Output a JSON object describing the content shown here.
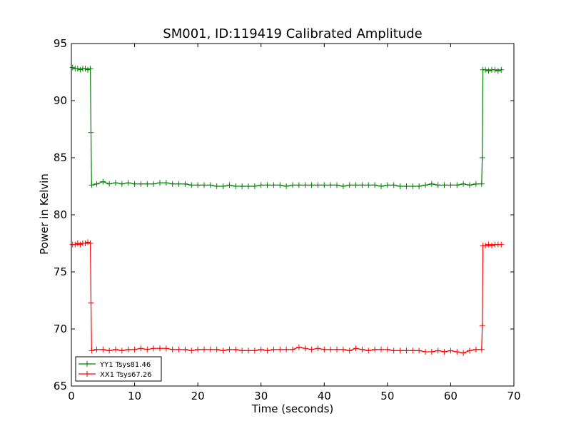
{
  "chart_data": {
    "type": "line",
    "title": "SM001, ID:119419 Calibrated Amplitude",
    "xlabel": "Time (seconds)",
    "ylabel": "Power in Kelvin",
    "xlim": [
      0,
      70
    ],
    "ylim": [
      65,
      95
    ],
    "xticks": [
      0,
      10,
      20,
      30,
      40,
      50,
      60,
      70
    ],
    "yticks": [
      65,
      70,
      75,
      80,
      85,
      90,
      95
    ],
    "grid": false,
    "legend_position": "lower-left",
    "series": [
      {
        "name": "YY1 Tsys81.46",
        "color": "#008000",
        "marker": "plus",
        "x": [
          0.2,
          0.6,
          1.0,
          1.4,
          1.8,
          2.2,
          2.6,
          3.0,
          3.1,
          3.2,
          4,
          5,
          6,
          7,
          8,
          9,
          10,
          11,
          12,
          13,
          14,
          15,
          16,
          17,
          18,
          19,
          20,
          21,
          22,
          23,
          24,
          25,
          26,
          27,
          28,
          29,
          30,
          31,
          32,
          33,
          34,
          35,
          36,
          37,
          38,
          39,
          40,
          41,
          42,
          43,
          44,
          45,
          46,
          47,
          48,
          49,
          50,
          51,
          52,
          53,
          54,
          55,
          56,
          57,
          58,
          59,
          60,
          61,
          62,
          63,
          64,
          64.9,
          65.0,
          65.1,
          65.5,
          66,
          66.5,
          67,
          67.5,
          68
        ],
        "y": [
          92.9,
          92.8,
          92.8,
          92.7,
          92.8,
          92.8,
          92.7,
          92.8,
          87.2,
          82.6,
          82.7,
          82.9,
          82.7,
          82.8,
          82.7,
          82.8,
          82.7,
          82.7,
          82.7,
          82.7,
          82.8,
          82.8,
          82.7,
          82.7,
          82.7,
          82.6,
          82.6,
          82.6,
          82.6,
          82.5,
          82.5,
          82.6,
          82.5,
          82.5,
          82.5,
          82.5,
          82.6,
          82.6,
          82.6,
          82.6,
          82.5,
          82.6,
          82.6,
          82.6,
          82.6,
          82.6,
          82.6,
          82.6,
          82.6,
          82.5,
          82.6,
          82.6,
          82.6,
          82.6,
          82.6,
          82.5,
          82.6,
          82.6,
          82.5,
          82.5,
          82.5,
          82.5,
          82.6,
          82.7,
          82.6,
          82.6,
          82.6,
          82.6,
          82.7,
          82.6,
          82.7,
          82.7,
          85.0,
          92.7,
          92.7,
          92.6,
          92.7,
          92.7,
          92.6,
          92.7
        ]
      },
      {
        "name": "XX1 Tsys67.26",
        "color": "#ff0000",
        "marker": "plus",
        "x": [
          0.2,
          0.6,
          1.0,
          1.4,
          1.8,
          2.2,
          2.6,
          3.0,
          3.1,
          3.2,
          4,
          5,
          6,
          7,
          8,
          9,
          10,
          11,
          12,
          13,
          14,
          15,
          16,
          17,
          18,
          19,
          20,
          21,
          22,
          23,
          24,
          25,
          26,
          27,
          28,
          29,
          30,
          31,
          32,
          33,
          34,
          35,
          36,
          37,
          38,
          39,
          40,
          41,
          42,
          43,
          44,
          45,
          46,
          47,
          48,
          49,
          50,
          51,
          52,
          53,
          54,
          55,
          56,
          57,
          58,
          59,
          60,
          61,
          62,
          63,
          64,
          64.9,
          65.0,
          65.1,
          65.5,
          66,
          66.5,
          67,
          67.5,
          68
        ],
        "y": [
          77.4,
          77.4,
          77.5,
          77.4,
          77.5,
          77.5,
          77.6,
          77.5,
          72.3,
          68.1,
          68.2,
          68.2,
          68.1,
          68.2,
          68.1,
          68.2,
          68.2,
          68.3,
          68.2,
          68.3,
          68.3,
          68.3,
          68.2,
          68.2,
          68.2,
          68.1,
          68.2,
          68.2,
          68.2,
          68.2,
          68.1,
          68.2,
          68.2,
          68.1,
          68.1,
          68.1,
          68.2,
          68.1,
          68.2,
          68.2,
          68.2,
          68.2,
          68.4,
          68.3,
          68.2,
          68.3,
          68.2,
          68.2,
          68.2,
          68.2,
          68.1,
          68.3,
          68.2,
          68.1,
          68.2,
          68.2,
          68.2,
          68.1,
          68.1,
          68.1,
          68.1,
          68.1,
          68.0,
          68.0,
          68.1,
          68.0,
          68.1,
          68.0,
          67.9,
          68.1,
          68.2,
          68.2,
          70.3,
          77.3,
          77.3,
          77.4,
          77.3,
          77.4,
          77.4,
          77.4
        ]
      }
    ]
  }
}
